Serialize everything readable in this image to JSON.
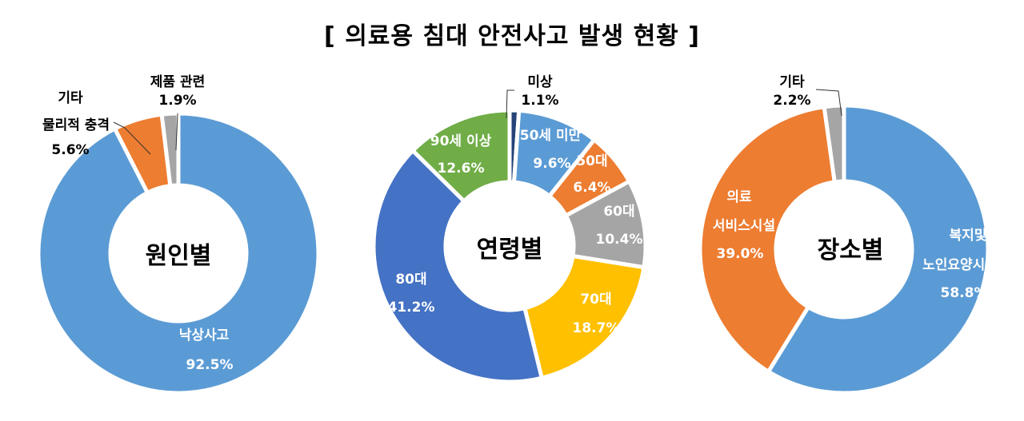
{
  "title": "[ 의료용 침대 안전사고 발생 현황 ]",
  "chart_data": [
    {
      "type": "pie",
      "donut": true,
      "center_label": "원인별",
      "slices": [
        {
          "name": "낙상사고",
          "value": 92.5,
          "label": "92.5%",
          "color": "#5B9BD5"
        },
        {
          "name": "기타 물리적 충격",
          "line1": "기타",
          "line2": "물리적 충격",
          "value": 5.6,
          "label": "5.6%",
          "color": "#ED7D31"
        },
        {
          "name": "제품 관련",
          "value": 1.9,
          "label": "1.9%",
          "color": "#A5A5A5"
        }
      ]
    },
    {
      "type": "pie",
      "donut": true,
      "center_label": "연령별",
      "slices": [
        {
          "name": "미상",
          "value": 1.1,
          "label": "1.1%",
          "color": "#264478"
        },
        {
          "name": "50세 미만",
          "value": 9.6,
          "label": "9.6%",
          "color": "#5B9BD5"
        },
        {
          "name": "50대",
          "value": 6.4,
          "label": "6.4%",
          "color": "#ED7D31"
        },
        {
          "name": "60대",
          "value": 10.4,
          "label": "10.4%",
          "color": "#A5A5A5"
        },
        {
          "name": "70대",
          "value": 18.7,
          "label": "18.7%",
          "color": "#FFC000"
        },
        {
          "name": "80대",
          "value": 41.2,
          "label": "41.2%",
          "color": "#4472C4"
        },
        {
          "name": "90세 이상",
          "value": 12.6,
          "label": "12.6%",
          "color": "#70AD47"
        }
      ]
    },
    {
      "type": "pie",
      "donut": true,
      "center_label": "장소별",
      "slices": [
        {
          "name": "복지및 노인요양시설",
          "line1": "복지및",
          "line2": "노인요양시설",
          "value": 58.8,
          "label": "58.8%",
          "color": "#5B9BD5"
        },
        {
          "name": "의료 서비스시설",
          "line1": "의료",
          "line2": "서비스시설",
          "value": 39.0,
          "label": "39.0%",
          "color": "#ED7D31"
        },
        {
          "name": "기타",
          "value": 2.2,
          "label": "2.2%",
          "color": "#A5A5A5"
        }
      ]
    }
  ]
}
